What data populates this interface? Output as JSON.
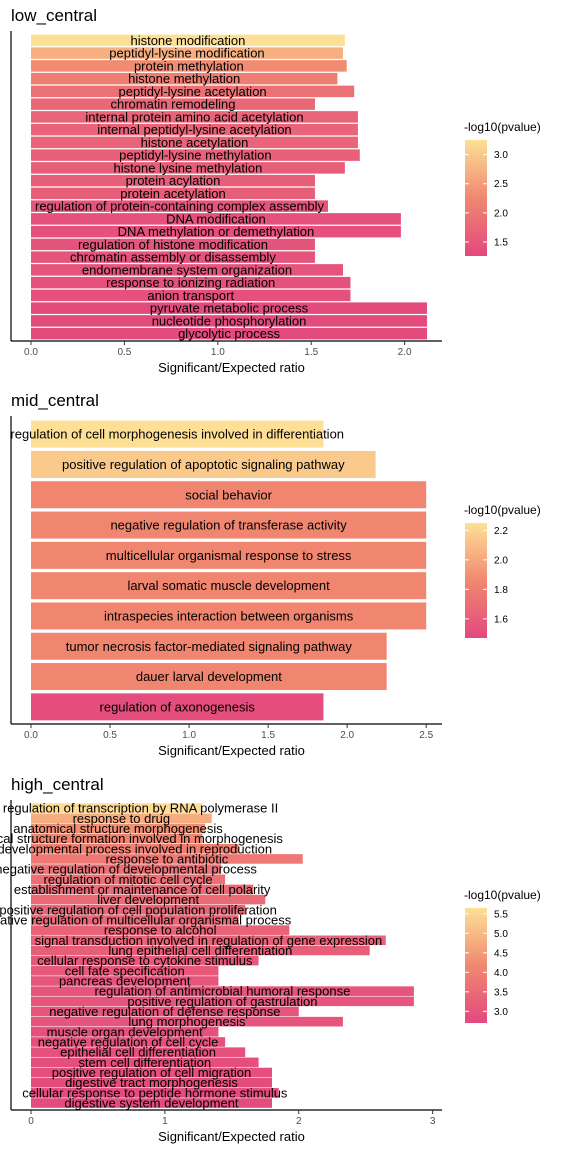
{
  "chart_data": [
    {
      "type": "bar",
      "orientation": "horizontal",
      "title": "low_central",
      "xlabel": "Significant/Expected ratio",
      "ylabel": "",
      "xlim": [
        -0.1,
        2.2
      ],
      "xticks": [
        0,
        0.5,
        1,
        1.5,
        2
      ],
      "xtick_labels": [
        "0.0",
        "0.5",
        "1.0",
        "1.5",
        "2.0"
      ],
      "legend": {
        "title": "-log10(pvalue)",
        "min": 1.26,
        "max": 3.25,
        "ticks": [
          1.5,
          2.0,
          2.5,
          3.0
        ],
        "tick_labels": [
          "1.5",
          "2.0",
          "2.5",
          "3.0"
        ],
        "position": "right"
      },
      "colors": {
        "low": "#e3487e",
        "mid": "#f08870",
        "high": "#fde096"
      },
      "categories": [
        "histone modification",
        "peptidyl-lysine modification",
        "protein methylation",
        "histone methylation",
        "peptidyl-lysine acetylation",
        "chromatin remodeling",
        "internal protein amino acid acetylation",
        "internal peptidyl-lysine acetylation",
        "histone acetylation",
        "peptidyl-lysine methylation",
        "histone lysine methylation",
        "protein acylation",
        "protein acetylation",
        "regulation of protein-containing complex assembly",
        "DNA modification",
        "DNA methylation or demethylation",
        "regulation of histone modification",
        "chromatin assembly or disassembly",
        "endomembrane system organization",
        "response to ionizing radiation",
        "anion transport",
        "pyruvate metabolic process",
        "nucleotide phosphorylation",
        "glycolytic process"
      ],
      "values": [
        1.68,
        1.67,
        1.69,
        1.64,
        1.73,
        1.52,
        1.75,
        1.75,
        1.75,
        1.76,
        1.68,
        1.52,
        1.52,
        1.59,
        1.98,
        1.98,
        1.52,
        1.52,
        1.67,
        1.71,
        1.71,
        2.12,
        2.12,
        2.12
      ],
      "color_values": [
        3.25,
        2.7,
        2.3,
        2.1,
        1.9,
        1.75,
        1.7,
        1.7,
        1.7,
        1.65,
        1.6,
        1.6,
        1.6,
        1.45,
        1.4,
        1.4,
        1.45,
        1.45,
        1.45,
        1.4,
        1.4,
        1.3,
        1.3,
        1.3
      ]
    },
    {
      "type": "bar",
      "orientation": "horizontal",
      "title": "mid_central",
      "xlabel": "Significant/Expected ratio",
      "ylabel": "",
      "xlim": [
        -0.12,
        2.6
      ],
      "xticks": [
        0,
        0.5,
        1,
        1.5,
        2,
        2.5
      ],
      "xtick_labels": [
        "0.0",
        "0.5",
        "1.0",
        "1.5",
        "2.0",
        "2.5"
      ],
      "legend": {
        "title": "-log10(pvalue)",
        "min": 1.47,
        "max": 2.25,
        "ticks": [
          1.6,
          1.8,
          2.0,
          2.2
        ],
        "tick_labels": [
          "1.6",
          "1.8",
          "2.0",
          "2.2"
        ],
        "position": "right"
      },
      "colors": {
        "low": "#e3487e",
        "mid": "#f08870",
        "high": "#fde096"
      },
      "categories": [
        "regulation of cell morphogenesis involved in differentiation",
        "positive regulation of apoptotic signaling pathway",
        "social behavior",
        "negative regulation of transferase activity",
        "multicellular organismal response to stress",
        "larval somatic muscle development",
        "intraspecies interaction between organisms",
        "tumor necrosis factor-mediated signaling pathway",
        "dauer larval development",
        "regulation of axonogenesis"
      ],
      "values": [
        1.85,
        2.18,
        2.5,
        2.5,
        2.5,
        2.5,
        2.5,
        2.25,
        2.25,
        1.85
      ],
      "color_values": [
        2.25,
        2.15,
        1.85,
        1.85,
        1.85,
        1.85,
        1.85,
        1.85,
        1.85,
        1.5
      ]
    },
    {
      "type": "bar",
      "orientation": "horizontal",
      "title": "high_central",
      "xlabel": "Significant/Expected ratio",
      "ylabel": "",
      "xlim": [
        -0.13,
        3.07
      ],
      "xticks": [
        0,
        1,
        2,
        3
      ],
      "xtick_labels": [
        "0",
        "1",
        "2",
        "3"
      ],
      "legend": {
        "title": "-log10(pvalue)",
        "min": 2.7,
        "max": 5.65,
        "ticks": [
          3.0,
          3.5,
          4.0,
          4.5,
          5.0,
          5.5
        ],
        "tick_labels": [
          "3.0",
          "3.5",
          "4.0",
          "4.5",
          "5.0",
          "5.5"
        ],
        "position": "right"
      },
      "colors": {
        "low": "#e3487e",
        "mid": "#f08870",
        "high": "#fde096"
      },
      "categories": [
        "positive regulation of transcription by RNA polymerase II",
        "response to drug",
        "anatomical structure morphogenesis",
        "anatomical structure formation involved in morphogenesis",
        "developmental process involved in reproduction",
        "response to antibiotic",
        "negative regulation of developmental process",
        "regulation of mitotic cell cycle",
        "establishment or maintenance of cell polarity",
        "liver development",
        "positive regulation of cell population proliferation",
        "negative regulation of multicellular organismal process",
        "response to alcohol",
        "signal transduction involved in regulation of gene expression",
        "lung epithelial cell differentiation",
        "cellular response to cytokine stimulus",
        "cell fate specification",
        "pancreas development",
        "regulation of antimicrobial humoral response",
        "positive regulation of gastrulation",
        "negative regulation of defense response",
        "lung morphogenesis",
        "muscle organ development",
        "negative regulation of cell cycle",
        "epithelial cell differentiation",
        "stem cell differentiation",
        "positive regulation of cell migration",
        "digestive tract morphogenesis",
        "cellular response to peptide hormone stimulus",
        "digestive system development"
      ],
      "values": [
        1.28,
        1.35,
        1.3,
        1.28,
        1.55,
        2.03,
        1.42,
        1.45,
        1.66,
        1.75,
        1.6,
        1.55,
        1.93,
        2.65,
        2.53,
        1.7,
        1.4,
        1.4,
        2.86,
        2.86,
        2.0,
        2.33,
        1.4,
        1.45,
        1.6,
        1.7,
        1.8,
        1.8,
        1.85,
        1.8
      ],
      "color_values": [
        5.6,
        4.8,
        4.3,
        4.1,
        4.0,
        3.8,
        3.7,
        3.6,
        3.5,
        3.5,
        3.4,
        3.4,
        3.3,
        3.3,
        3.2,
        3.1,
        3.1,
        3.0,
        3.0,
        3.0,
        3.0,
        3.0,
        2.9,
        2.9,
        2.9,
        2.85,
        2.85,
        2.8,
        2.8,
        2.8
      ]
    }
  ]
}
